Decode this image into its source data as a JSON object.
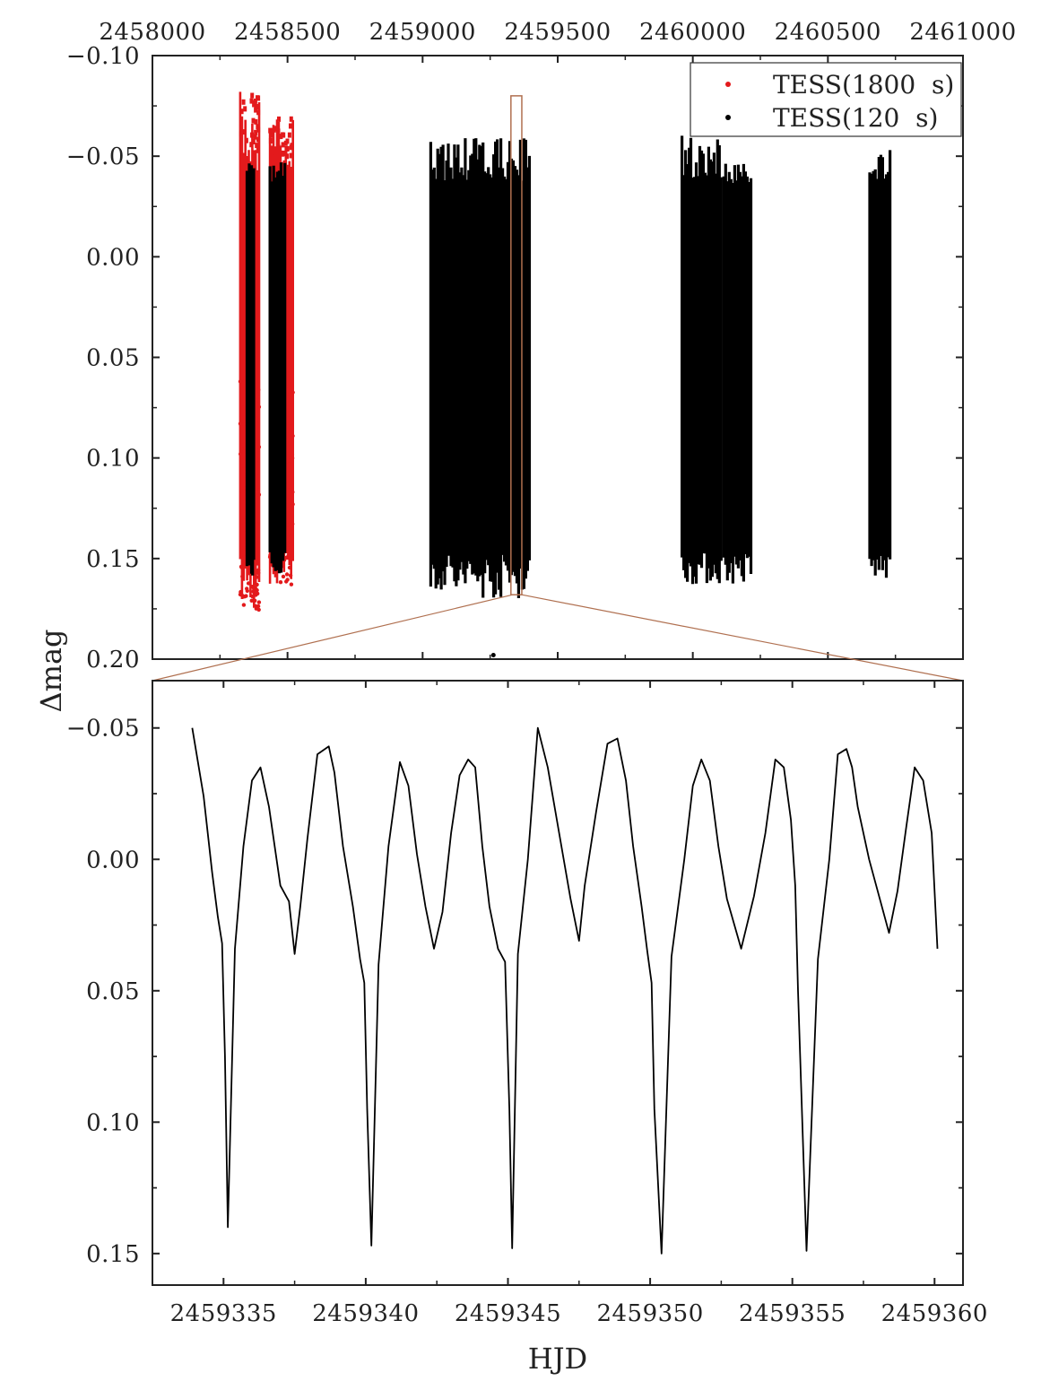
{
  "figure": {
    "ylabel": "Δmag",
    "xlabel": "HJD"
  },
  "chart_data": [
    {
      "type": "scatter",
      "panel": "top",
      "xlabel": "",
      "ylabel": "Δmag",
      "xlim": [
        2458000,
        2461000
      ],
      "ylim": [
        -0.1,
        0.2
      ],
      "y_inverted": true,
      "x_axis_position": "top",
      "legend_placement": "top-right",
      "x_ticks": [
        "2458000",
        "2458500",
        "2459000",
        "2459500",
        "2460000",
        "2460500",
        "2461000"
      ],
      "y_ticks": [
        "−0.10",
        "−0.05",
        "0.00",
        "0.05",
        "0.10",
        "0.15",
        "0.20"
      ],
      "legend": [
        {
          "label": "TESS(1800  s)",
          "color": "#e31a1c"
        },
        {
          "label": "TESS(120  s)",
          "color": "#000000"
        }
      ],
      "series": [
        {
          "name": "TESS(1800  s)",
          "color": "#e31a1c",
          "segments": [
            {
              "x_start": 2458325,
              "x_end": 2458395,
              "y_min": -0.082,
              "y_max": 0.176
            },
            {
              "x_start": 2458435,
              "x_end": 2458520,
              "y_min": -0.07,
              "y_max": 0.163
            }
          ]
        },
        {
          "name": "TESS(120  s)",
          "color": "#000000",
          "segments": [
            {
              "x_start": 2458350,
              "x_end": 2458375,
              "y_min": -0.047,
              "y_max": 0.159
            },
            {
              "x_start": 2458435,
              "x_end": 2458490,
              "y_min": -0.047,
              "y_max": 0.16
            },
            {
              "x_start": 2459030,
              "x_end": 2459095,
              "y_min": -0.059,
              "y_max": 0.166
            },
            {
              "x_start": 2459105,
              "x_end": 2459395,
              "y_min": -0.059,
              "y_max": 0.17
            },
            {
              "x_start": 2459960,
              "x_end": 2460105,
              "y_min": -0.061,
              "y_max": 0.163
            },
            {
              "x_start": 2460115,
              "x_end": 2460215,
              "y_min": -0.047,
              "y_max": 0.163
            },
            {
              "x_start": 2460655,
              "x_end": 2460730,
              "y_min": -0.053,
              "y_max": 0.161
            }
          ],
          "isolated_points": [
            [
              2459262,
              0.198
            ]
          ]
        }
      ],
      "zoom_window": {
        "x_start": 2459333.5,
        "x_end": 2459360.5
      }
    },
    {
      "type": "line",
      "panel": "bottom",
      "xlabel": "HJD",
      "ylabel": "Δmag",
      "xlim": [
        2459332.5,
        2459361
      ],
      "ylim": [
        -0.068,
        0.162
      ],
      "y_inverted": true,
      "x_ticks": [
        "2459335",
        "2459340",
        "2459345",
        "2459350",
        "2459355",
        "2459360"
      ],
      "y_ticks": [
        "−0.05",
        "0.00",
        "0.05",
        "0.10",
        "0.15"
      ],
      "series": [
        {
          "name": "",
          "color": "#000000",
          "x": [
            2459333.9,
            2459334.3,
            2459334.6,
            2459334.8,
            2459334.95,
            2459335.05,
            2459335.15,
            2459335.4,
            2459335.7,
            2459336.0,
            2459336.3,
            2459336.6,
            2459337.0,
            2459337.3,
            2459337.5,
            2459337.7,
            2459337.95,
            2459338.3,
            2459338.7,
            2459338.9,
            2459339.2,
            2459339.55,
            2459339.8,
            2459339.95,
            2459340.05,
            2459340.2,
            2459340.45,
            2459340.8,
            2459341.2,
            2459341.5,
            2459341.8,
            2459342.1,
            2459342.4,
            2459342.7,
            2459343.0,
            2459343.3,
            2459343.6,
            2459343.85,
            2459344.1,
            2459344.35,
            2459344.65,
            2459344.9,
            2459345.05,
            2459345.15,
            2459345.35,
            2459345.7,
            2459346.05,
            2459346.4,
            2459346.8,
            2459347.2,
            2459347.5,
            2459347.7,
            2459348.1,
            2459348.5,
            2459348.85,
            2459349.15,
            2459349.4,
            2459349.7,
            2459349.9,
            2459350.05,
            2459350.15,
            2459350.4,
            2459350.75,
            2459351.2,
            2459351.5,
            2459351.8,
            2459352.1,
            2459352.4,
            2459352.7,
            2459353.2,
            2459353.65,
            2459354.05,
            2459354.4,
            2459354.7,
            2459354.95,
            2459355.1,
            2459355.2,
            2459355.5,
            2459355.9,
            2459356.3,
            2459356.6,
            2459356.9,
            2459357.1,
            2459357.3,
            2459357.7,
            2459358.1,
            2459358.4,
            2459358.7,
            2459359.0,
            2459359.3,
            2459359.6,
            2459359.9,
            2459360.1
          ],
          "y": [
            -0.05,
            -0.024,
            0.005,
            0.022,
            0.032,
            0.075,
            0.14,
            0.034,
            -0.005,
            -0.03,
            -0.035,
            -0.02,
            0.01,
            0.016,
            0.036,
            0.018,
            -0.008,
            -0.04,
            -0.043,
            -0.033,
            -0.005,
            0.018,
            0.038,
            0.047,
            0.095,
            0.147,
            0.04,
            -0.005,
            -0.037,
            -0.028,
            -0.002,
            0.018,
            0.034,
            0.02,
            -0.01,
            -0.032,
            -0.038,
            -0.035,
            -0.005,
            0.018,
            0.034,
            0.039,
            0.095,
            0.148,
            0.036,
            0.0,
            -0.05,
            -0.035,
            -0.01,
            0.015,
            0.031,
            0.01,
            -0.018,
            -0.044,
            -0.046,
            -0.03,
            -0.005,
            0.018,
            0.035,
            0.047,
            0.095,
            0.15,
            0.037,
            0.0,
            -0.028,
            -0.038,
            -0.03,
            -0.005,
            0.015,
            0.034,
            0.014,
            -0.01,
            -0.038,
            -0.035,
            -0.015,
            0.01,
            0.05,
            0.149,
            0.038,
            0.0,
            -0.04,
            -0.042,
            -0.035,
            -0.02,
            0.0,
            0.016,
            0.028,
            0.012,
            -0.012,
            -0.035,
            -0.03,
            -0.01,
            0.034
          ]
        }
      ]
    }
  ]
}
